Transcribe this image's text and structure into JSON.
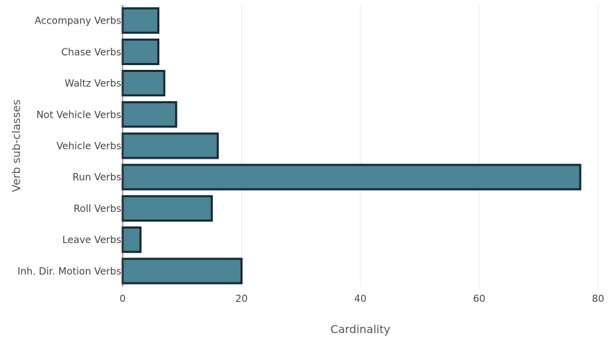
{
  "chart_data": {
    "type": "bar",
    "orientation": "horizontal",
    "categories": [
      "Accompany Verbs",
      "Chase Verbs",
      "Waltz Verbs",
      "Not Vehicle Verbs",
      "Vehicle Verbs",
      "Run Verbs",
      "Roll Verbs",
      "Leave Verbs",
      "Inh. Dir. Motion Verbs"
    ],
    "values": [
      6,
      6,
      7,
      9,
      16,
      77,
      15,
      3,
      20
    ],
    "xlabel": "Cardinality",
    "ylabel": "Verb sub-classes",
    "xlim": [
      0,
      80
    ],
    "xticks": [
      0,
      20,
      40,
      60,
      80
    ],
    "grid": true,
    "colors": {
      "bar_fill": "#4b8596",
      "bar_outline": "#14293b",
      "grid": "#e9e9e9",
      "text": "#444444"
    }
  }
}
